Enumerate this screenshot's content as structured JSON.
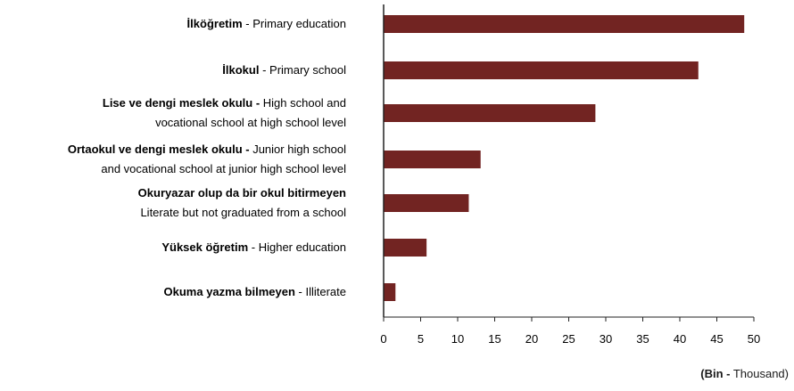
{
  "chart_data": {
    "type": "bar",
    "orientation": "horizontal",
    "categories": [
      {
        "lines": [
          {
            "bold": "İlköğretim",
            "rest": " - Primary education"
          }
        ]
      },
      {
        "lines": [
          {
            "bold": "İlkokul",
            "rest": " - Primary school"
          }
        ]
      },
      {
        "lines": [
          {
            "bold": "Lise ve dengi meslek okulu -",
            "rest": " High school and"
          },
          {
            "bold": "",
            "rest": "vocational school at high school level"
          }
        ]
      },
      {
        "lines": [
          {
            "bold": "Ortaokul ve dengi meslek okulu -",
            "rest": " Junior high school"
          },
          {
            "bold": "",
            "rest": "and vocational school at junior high school level"
          }
        ]
      },
      {
        "lines": [
          {
            "bold": "Okuryazar olup da bir okul bitirmeyen",
            "rest": ""
          },
          {
            "bold": "",
            "rest": "Literate but not graduated from a school"
          }
        ]
      },
      {
        "lines": [
          {
            "bold": "Yüksek öğretim",
            "rest": " - Higher education"
          }
        ]
      },
      {
        "lines": [
          {
            "bold": "Okuma yazma bilmeyen",
            "rest": " - Illiterate"
          }
        ]
      }
    ],
    "values": [
      48.7,
      42.5,
      28.6,
      13.1,
      11.5,
      5.8,
      1.6
    ],
    "xlim": [
      0,
      50
    ],
    "xticks": [
      0,
      5,
      10,
      15,
      20,
      25,
      30,
      35,
      40,
      45,
      50
    ],
    "unit_label": {
      "bold": "(Bin -",
      "rest": " Thousand)"
    },
    "bar_color": "#722422",
    "grid": false
  }
}
